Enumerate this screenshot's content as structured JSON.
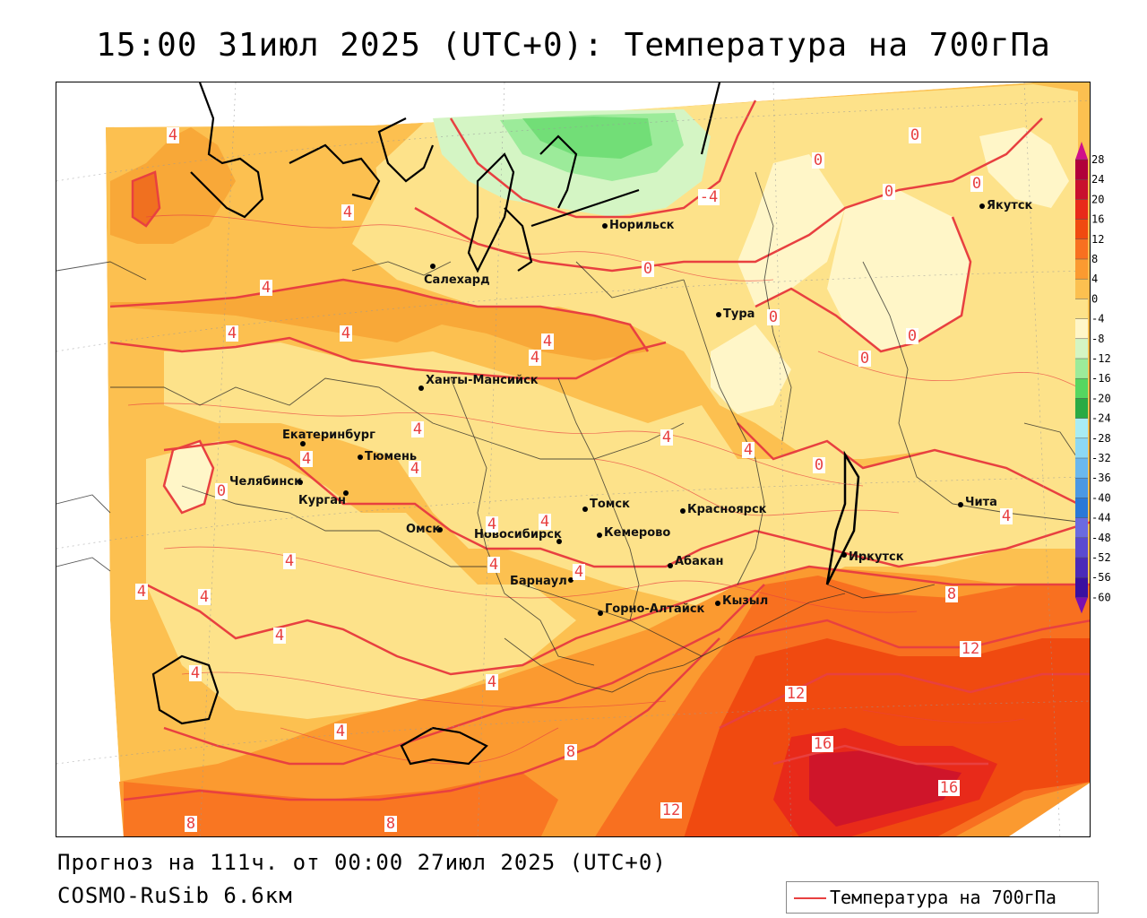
{
  "title": "15:00 31июл 2025 (UTC+0): Температура на 700гПа",
  "footer": {
    "forecast": "Прогноз на 111ч. от 00:00 27июл 2025 (UTC+0)",
    "model": "COSMO-RuSib 6.6км"
  },
  "legend": {
    "label": "Температура на 700гПа",
    "line_color": "#e84040"
  },
  "colorbar": {
    "labels": [
      "28",
      "24",
      "20",
      "16",
      "12",
      "8",
      "4",
      "0",
      "-4",
      "-8",
      "-12",
      "-16",
      "-20",
      "-24",
      "-28",
      "-32",
      "-36",
      "-40",
      "-44",
      "-48",
      "-52",
      "-56",
      "-60"
    ],
    "colors": [
      "#b0003a",
      "#c8102e",
      "#e82a1a",
      "#f04a10",
      "#f87020",
      "#fb9a30",
      "#fcc050",
      "#fde28a",
      "#fff6c8",
      "#d4f5c4",
      "#9ceb9a",
      "#56d660",
      "#2aaa44",
      "#a8ecf4",
      "#8cd8f4",
      "#6ab8ee",
      "#4a98e4",
      "#2a78d8",
      "#6a6ae0",
      "#5a4ad0",
      "#4a2ab8",
      "#3a10a0",
      "#5a0a90"
    ]
  },
  "cities": [
    {
      "name": "Норильск"
    },
    {
      "name": "Якутск"
    },
    {
      "name": "Салехард"
    },
    {
      "name": "Тура"
    },
    {
      "name": "Ханты-Мансийск"
    },
    {
      "name": "Екатеринбург"
    },
    {
      "name": "Тюмень"
    },
    {
      "name": "Челябинск"
    },
    {
      "name": "Курган"
    },
    {
      "name": "Омск"
    },
    {
      "name": "Новосибирск"
    },
    {
      "name": "Томск"
    },
    {
      "name": "Кемерово"
    },
    {
      "name": "Красноярск"
    },
    {
      "name": "Барнаул"
    },
    {
      "name": "Абакан"
    },
    {
      "name": "Горно-Алтайск"
    },
    {
      "name": "Кызыл"
    },
    {
      "name": "Иркутск"
    },
    {
      "name": "Чита"
    }
  ],
  "isotherm_labels": [
    "4",
    "4",
    "4",
    "4",
    "4",
    "4",
    "4",
    "4",
    "4",
    "4",
    "4",
    "4",
    "4",
    "4",
    "4",
    "4",
    "4",
    "4",
    "4",
    "4",
    "4",
    "4",
    "4",
    "4",
    "0",
    "0",
    "0",
    "0",
    "0",
    "0",
    "0",
    "0",
    "0",
    "0",
    "-4",
    "8",
    "8",
    "8",
    "8",
    "12",
    "12",
    "12",
    "16",
    "16"
  ]
}
